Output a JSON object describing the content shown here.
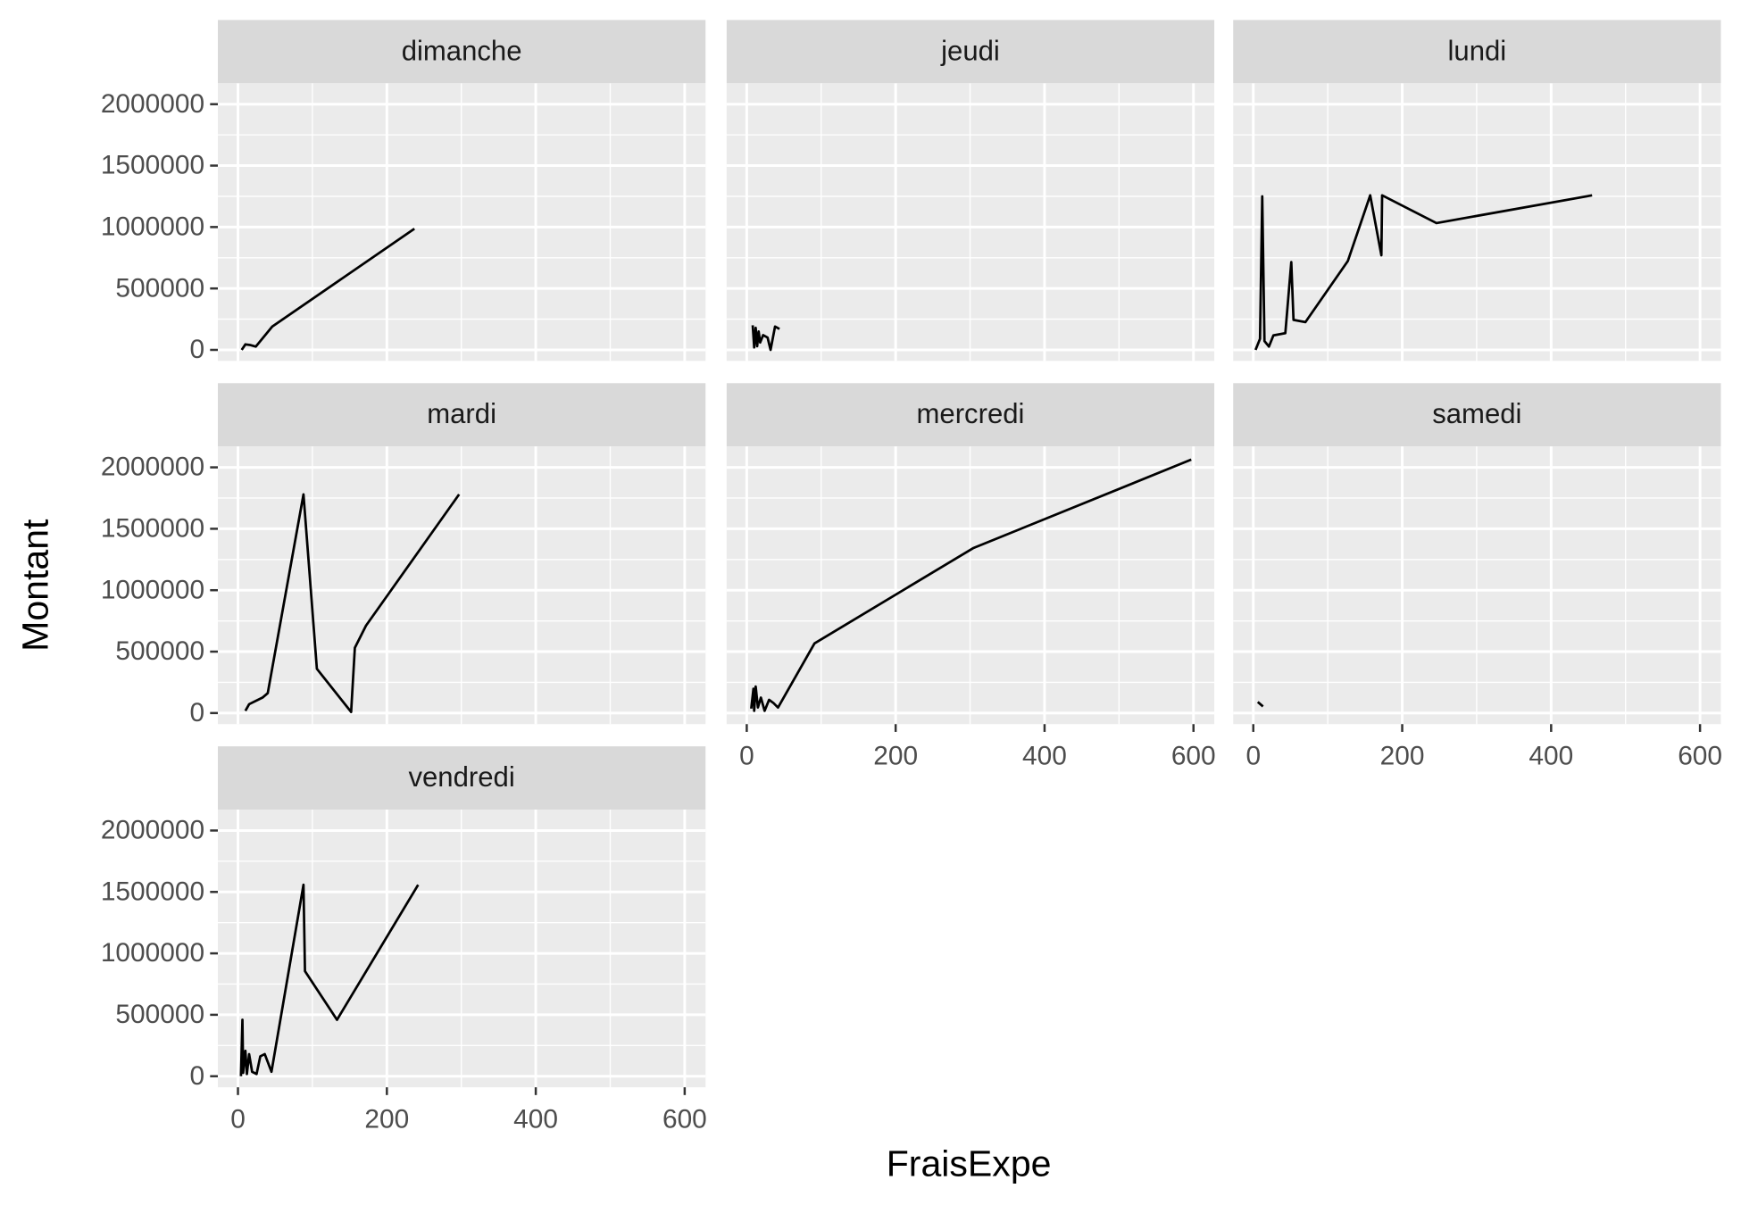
{
  "xlabel": "FraisExpe",
  "ylabel": "Montant",
  "chart_data": [
    {
      "type": "line",
      "title": "dimanche",
      "x": [
        5,
        10,
        16,
        24,
        46,
        237
      ],
      "series": [
        {
          "color": "#000000",
          "values": [
            0,
            45000,
            40000,
            27000,
            190000,
            986000
          ]
        }
      ],
      "xlim": [
        -27,
        628
      ],
      "ylim": [
        -90000,
        2170000
      ],
      "xticks": [
        0,
        200,
        400,
        600
      ],
      "yticks": [
        0,
        500000,
        1000000,
        1500000,
        2000000
      ],
      "grid": true
    },
    {
      "type": "line",
      "title": "jeudi",
      "x": [
        8,
        10,
        12,
        14,
        16,
        18,
        22,
        28,
        32,
        38,
        44
      ],
      "series": [
        {
          "color": "#000000",
          "values": [
            200000,
            20000,
            180000,
            30000,
            150000,
            60000,
            120000,
            100000,
            0,
            190000,
            170000
          ]
        }
      ],
      "xlim": [
        -27,
        628
      ],
      "ylim": [
        -90000,
        2170000
      ],
      "xticks": [
        0,
        200,
        400,
        600
      ],
      "yticks": [
        0,
        500000,
        1000000,
        1500000,
        2000000
      ],
      "grid": true
    },
    {
      "type": "line",
      "title": "lundi",
      "x": [
        3,
        9,
        12,
        15,
        21,
        27,
        43,
        51,
        54,
        70,
        127,
        157,
        172,
        173,
        246,
        455
      ],
      "series": [
        {
          "color": "#000000",
          "values": [
            0,
            90000,
            1250000,
            72000,
            27000,
            118000,
            136000,
            715000,
            244000,
            226000,
            724000,
            1258000,
            770000,
            1258000,
            1032000,
            1258000
          ]
        }
      ],
      "xlim": [
        -27,
        628
      ],
      "ylim": [
        -90000,
        2170000
      ],
      "xticks": [
        0,
        200,
        400,
        600
      ],
      "yticks": [
        0,
        500000,
        1000000,
        1500000,
        2000000
      ],
      "grid": true
    },
    {
      "type": "line",
      "title": "mardi",
      "x": [
        10,
        15,
        33,
        40,
        88,
        106,
        152,
        157,
        172,
        297
      ],
      "series": [
        {
          "color": "#000000",
          "values": [
            18000,
            72000,
            126000,
            162000,
            1780000,
            360000,
            9000,
            531000,
            712000,
            1780000
          ]
        }
      ],
      "xlim": [
        -27,
        628
      ],
      "ylim": [
        -90000,
        2170000
      ],
      "xticks": [
        0,
        200,
        400,
        600
      ],
      "yticks": [
        0,
        500000,
        1000000,
        1500000,
        2000000
      ],
      "grid": true
    },
    {
      "type": "line",
      "title": "mercredi",
      "x": [
        6,
        9,
        10,
        12,
        15,
        19,
        24,
        30,
        36,
        42,
        91,
        304,
        597
      ],
      "series": [
        {
          "color": "#000000",
          "values": [
            36000,
            198000,
            18000,
            216000,
            45000,
            126000,
            18000,
            108000,
            81000,
            45000,
            567000,
            1342000,
            2063000
          ]
        }
      ],
      "xlim": [
        -27,
        628
      ],
      "ylim": [
        -90000,
        2170000
      ],
      "xticks": [
        0,
        200,
        400,
        600
      ],
      "yticks": [
        0,
        500000,
        1000000,
        1500000,
        2000000
      ],
      "grid": true
    },
    {
      "type": "line",
      "title": "samedi",
      "x": [
        6,
        13
      ],
      "series": [
        {
          "color": "#000000",
          "values": [
            90000,
            54000
          ]
        }
      ],
      "xlim": [
        -27,
        628
      ],
      "ylim": [
        -90000,
        2170000
      ],
      "xticks": [
        0,
        200,
        400,
        600
      ],
      "yticks": [
        0,
        500000,
        1000000,
        1500000,
        2000000
      ],
      "grid": true
    },
    {
      "type": "line",
      "title": "vendredi",
      "x": [
        4,
        6,
        7,
        10,
        12,
        15,
        19,
        25,
        30,
        36,
        45,
        88,
        90,
        133,
        242
      ],
      "series": [
        {
          "color": "#000000",
          "values": [
            0,
            459000,
            27000,
            207000,
            18000,
            180000,
            36000,
            18000,
            162000,
            180000,
            36000,
            1558000,
            855000,
            459000,
            1558000
          ]
        }
      ],
      "xlim": [
        -27,
        628
      ],
      "ylim": [
        -90000,
        2170000
      ],
      "xticks": [
        0,
        200,
        400,
        600
      ],
      "yticks": [
        0,
        500000,
        1000000,
        1500000,
        2000000
      ],
      "grid": true
    }
  ]
}
